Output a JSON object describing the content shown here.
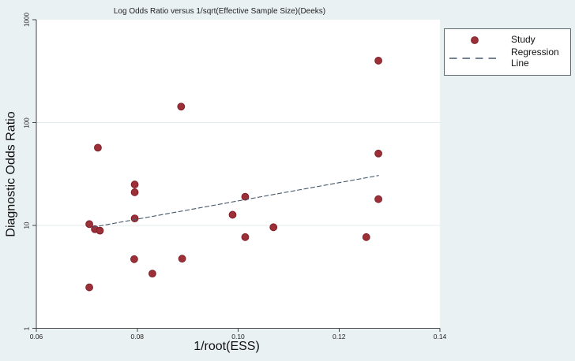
{
  "title": "Log Odds Ratio versus 1/sqrt(Effective Sample Size)(Deeks)",
  "axes": {
    "x": {
      "label": "1/root(ESS)"
    },
    "y": {
      "label": "Diagnostic Odds Ratio"
    }
  },
  "legend": {
    "study_label": "Study",
    "regression_label": "Regression Line"
  },
  "colors": {
    "background": "#eaf1f2",
    "plot_background": "#ffffff",
    "axis": "#454545",
    "grid": "#e3ebee",
    "marker": "#9d2f38",
    "marker_edge": "#7e2029",
    "regression_line": "#46596a",
    "text": "#1a1a1a"
  },
  "chart_data": {
    "type": "scatter",
    "title": "Log Odds Ratio versus 1/sqrt(Effective Sample Size)(Deeks)",
    "xlabel": "1/root(ESS)",
    "ylabel": "Diagnostic Odds Ratio",
    "xlim": [
      0.06,
      0.14
    ],
    "ylim": [
      1,
      1000
    ],
    "y_scale": "log",
    "x_ticks": [
      0.06,
      0.08,
      0.1,
      0.12,
      0.14
    ],
    "y_ticks": [
      1,
      10,
      100,
      1000
    ],
    "grid": "horizontal-only",
    "legend_position": "top-right-outside",
    "series": [
      {
        "name": "Study",
        "type": "scatter",
        "points": [
          [
            0.1278,
            400
          ],
          [
            0.0887,
            143
          ],
          [
            0.0722,
            57
          ],
          [
            0.1278,
            50
          ],
          [
            0.0795,
            25
          ],
          [
            0.0795,
            21
          ],
          [
            0.1014,
            19
          ],
          [
            0.1278,
            18
          ],
          [
            0.0989,
            12.7
          ],
          [
            0.0795,
            11.7
          ],
          [
            0.0705,
            10.3
          ],
          [
            0.0716,
            9.2
          ],
          [
            0.0726,
            8.9
          ],
          [
            0.107,
            9.6
          ],
          [
            0.1014,
            7.7
          ],
          [
            0.1254,
            7.7
          ],
          [
            0.0794,
            4.7
          ],
          [
            0.0889,
            4.75
          ],
          [
            0.083,
            3.4
          ],
          [
            0.0705,
            2.5
          ]
        ]
      },
      {
        "name": "Regression Line",
        "type": "line",
        "dashed": true,
        "points": [
          [
            0.0711,
            9.6
          ],
          [
            0.1279,
            30.6
          ]
        ]
      }
    ]
  }
}
